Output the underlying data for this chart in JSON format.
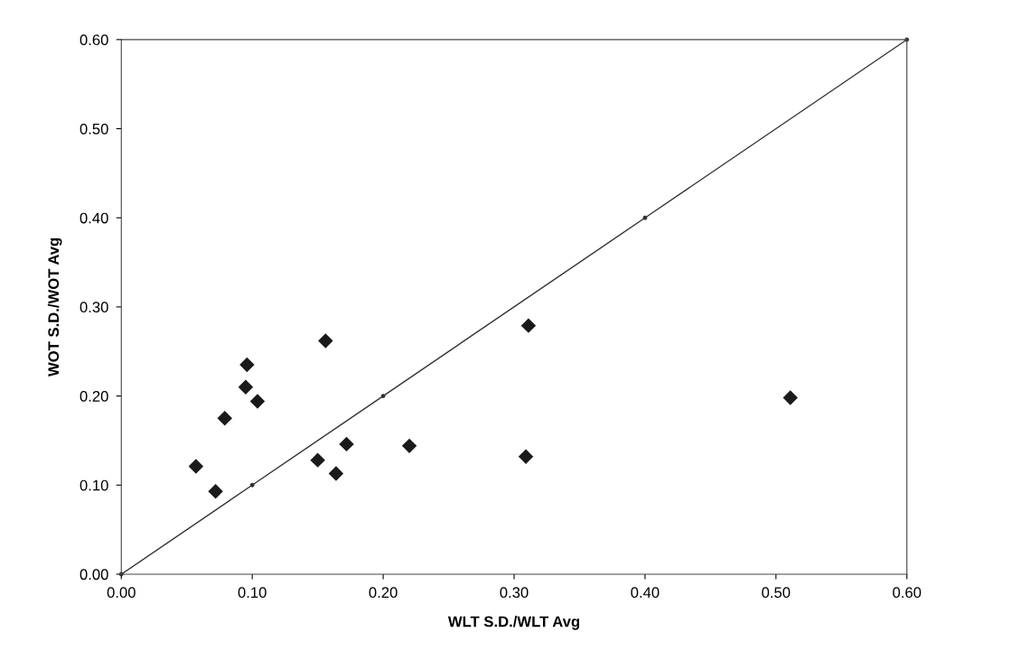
{
  "chart_data": {
    "type": "scatter",
    "xlabel": "WLT S.D./WLT Avg",
    "ylabel": "WOT S.D./WOT Avg",
    "xlim": [
      0,
      0.6
    ],
    "ylim": [
      0,
      0.6
    ],
    "xticks": [
      {
        "value": 0,
        "label": "0.00"
      },
      {
        "value": 0.1,
        "label": "0.10"
      },
      {
        "value": 0.2,
        "label": "0.20"
      },
      {
        "value": 0.3,
        "label": "0.30"
      },
      {
        "value": 0.4,
        "label": "0.40"
      },
      {
        "value": 0.5,
        "label": "0.50"
      },
      {
        "value": 0.6,
        "label": "0.60"
      }
    ],
    "yticks": [
      {
        "value": 0,
        "label": "0.00"
      },
      {
        "value": 0.1,
        "label": "0.10"
      },
      {
        "value": 0.2,
        "label": "0.20"
      },
      {
        "value": 0.3,
        "label": "0.30"
      },
      {
        "value": 0.4,
        "label": "0.40"
      },
      {
        "value": 0.5,
        "label": "0.50"
      },
      {
        "value": 0.6,
        "label": "0.60"
      }
    ],
    "grid": false,
    "legend": false,
    "series": [
      {
        "marker": "diamond",
        "color": "#1a1a1a",
        "x": [
          0.057,
          0.072,
          0.079,
          0.095,
          0.096,
          0.104,
          0.15,
          0.156,
          0.164,
          0.172,
          0.22,
          0.309,
          0.311,
          0.511
        ],
        "values": [
          0.121,
          0.093,
          0.175,
          0.21,
          0.235,
          0.194,
          0.128,
          0.262,
          0.113,
          0.146,
          0.144,
          0.132,
          0.279,
          0.198
        ]
      },
      {
        "type": "line",
        "marker": "circle",
        "line_style": "solid",
        "color": "#333333",
        "x": [
          0,
          0.1,
          0.2,
          0.4,
          0.6
        ],
        "values": [
          0,
          0.1,
          0.2,
          0.4,
          0.6
        ]
      }
    ]
  }
}
